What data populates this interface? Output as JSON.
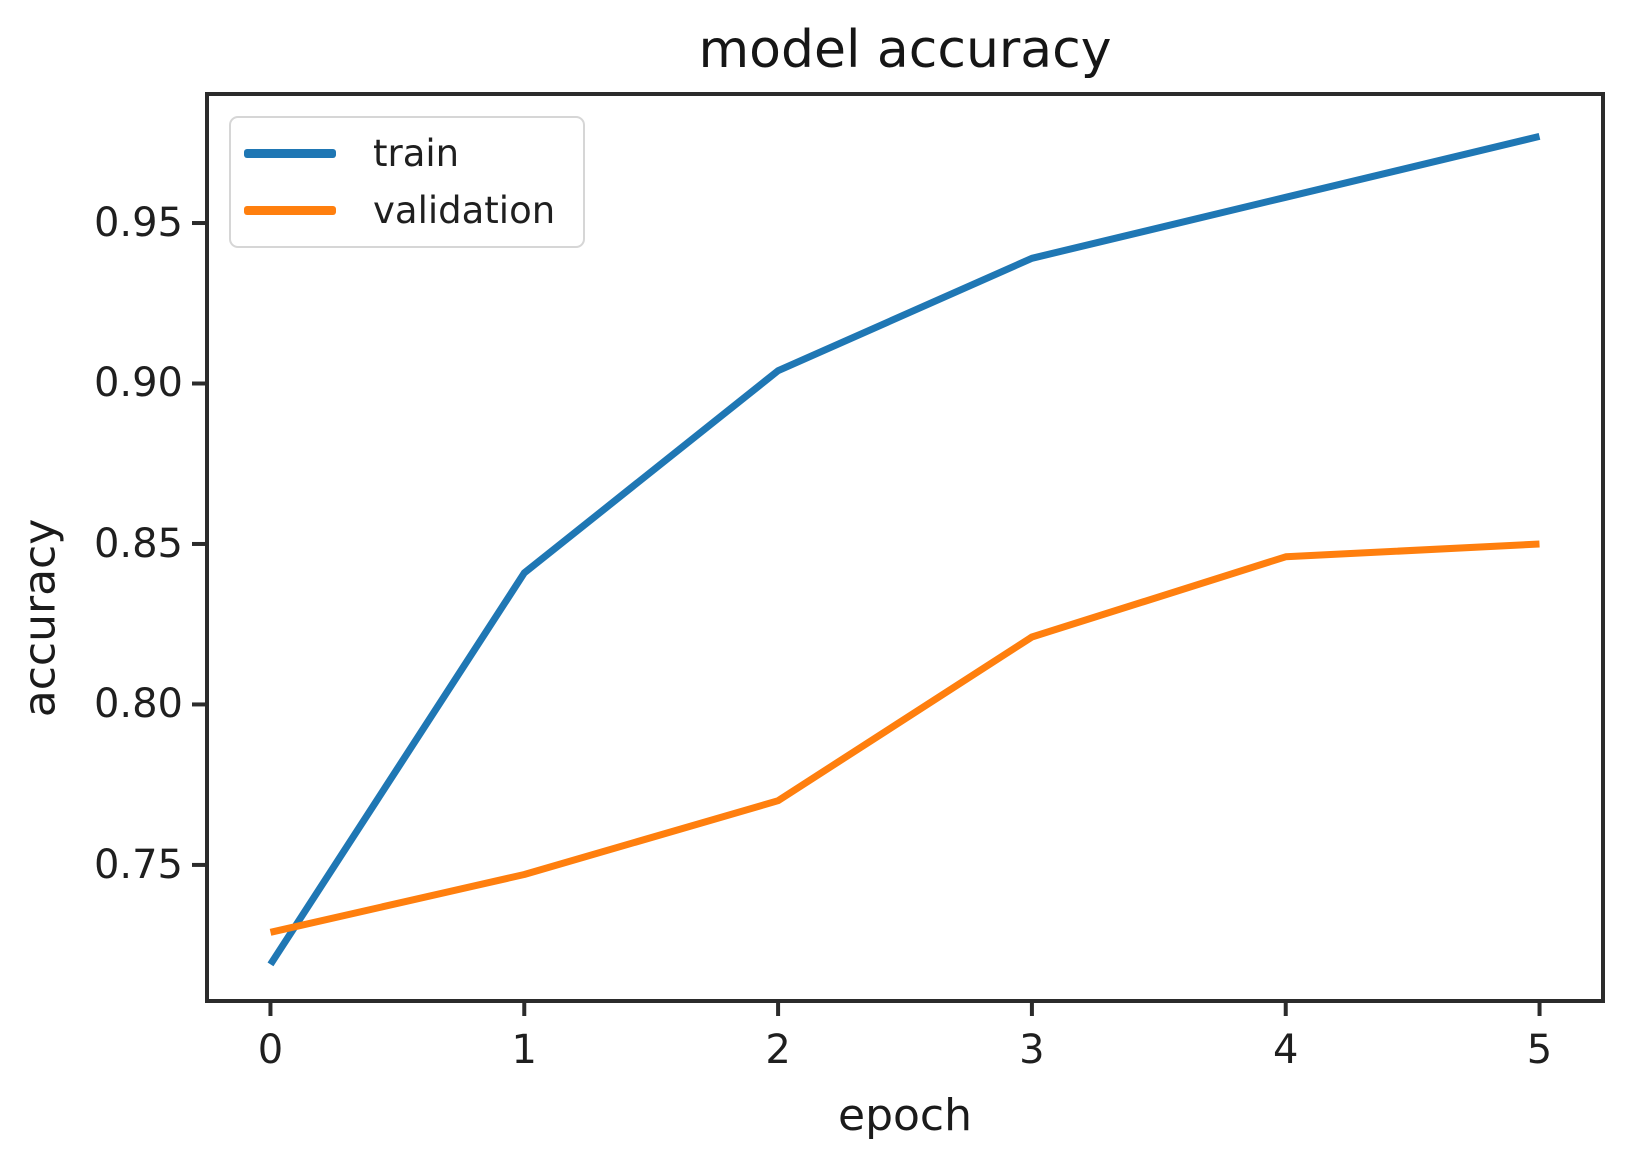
{
  "figure": {
    "title": "model accuracy",
    "x_axis_label": "epoch",
    "y_axis_label": "accuracy"
  },
  "legend": {
    "items": [
      {
        "label": "train",
        "color": "#1f77b4"
      },
      {
        "label": "validation",
        "color": "#ff7f0e"
      }
    ]
  },
  "colors": {
    "train_line": "#1f77b4",
    "validation_line": "#ff7f0e",
    "spine": "#2b2b2b",
    "background": "#ffffff"
  },
  "chart_data": {
    "type": "line",
    "title": "model accuracy",
    "xlabel": "epoch",
    "ylabel": "accuracy",
    "x": [
      0,
      1,
      2,
      3,
      4,
      5
    ],
    "series": [
      {
        "name": "train",
        "color": "#1f77b4",
        "values": [
          0.719,
          0.841,
          0.904,
          0.939,
          0.958,
          0.977
        ]
      },
      {
        "name": "validation",
        "color": "#ff7f0e",
        "values": [
          0.729,
          0.747,
          0.77,
          0.821,
          0.846,
          0.85
        ]
      }
    ],
    "x_ticks": [
      0,
      1,
      2,
      3,
      4,
      5
    ],
    "x_tick_labels": [
      "0",
      "1",
      "2",
      "3",
      "4",
      "5"
    ],
    "y_ticks": [
      0.75,
      0.8,
      0.85,
      0.9,
      0.95
    ],
    "y_tick_labels": [
      "0.75",
      "0.80",
      "0.85",
      "0.90",
      "0.95"
    ],
    "xlim": [
      -0.25,
      5.25
    ],
    "ylim": [
      0.7076,
      0.9902
    ],
    "grid": false,
    "legend_position": "upper left"
  }
}
